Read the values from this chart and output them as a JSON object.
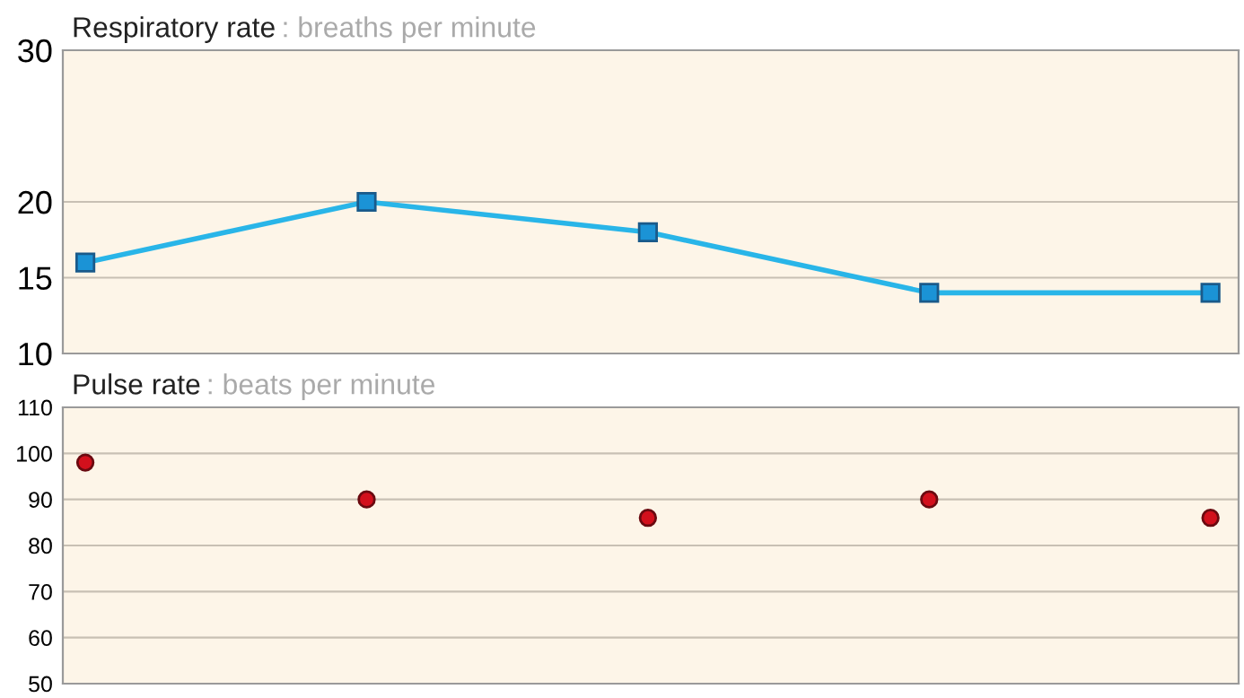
{
  "chart_data": [
    {
      "type": "line",
      "title": "Respiratory rate",
      "subtitle": ": breaths per minute",
      "categories": [
        null,
        null,
        null,
        null,
        null
      ],
      "tick_labels": "y",
      "series": [
        {
          "color": "#29b5e8",
          "values": [
            16,
            20,
            18,
            14,
            14
          ]
        }
      ],
      "marker": "square",
      "line_style": "solid",
      "ylim": [
        10,
        30
      ],
      "yticks": [
        10,
        15,
        20,
        30
      ],
      "grid": "y"
    },
    {
      "type": "scatter",
      "title": "Pulse rate",
      "subtitle": ": beats per minute",
      "categories": [
        null,
        null,
        null,
        null,
        null
      ],
      "tick_labels": "y",
      "series": [
        {
          "color": "#d2101c",
          "values": [
            98,
            90,
            86,
            90,
            86
          ]
        }
      ],
      "marker": "circle",
      "ylim": [
        50,
        110
      ],
      "yticks": [
        50,
        60,
        70,
        80,
        90,
        100,
        110
      ],
      "grid": "y"
    }
  ]
}
